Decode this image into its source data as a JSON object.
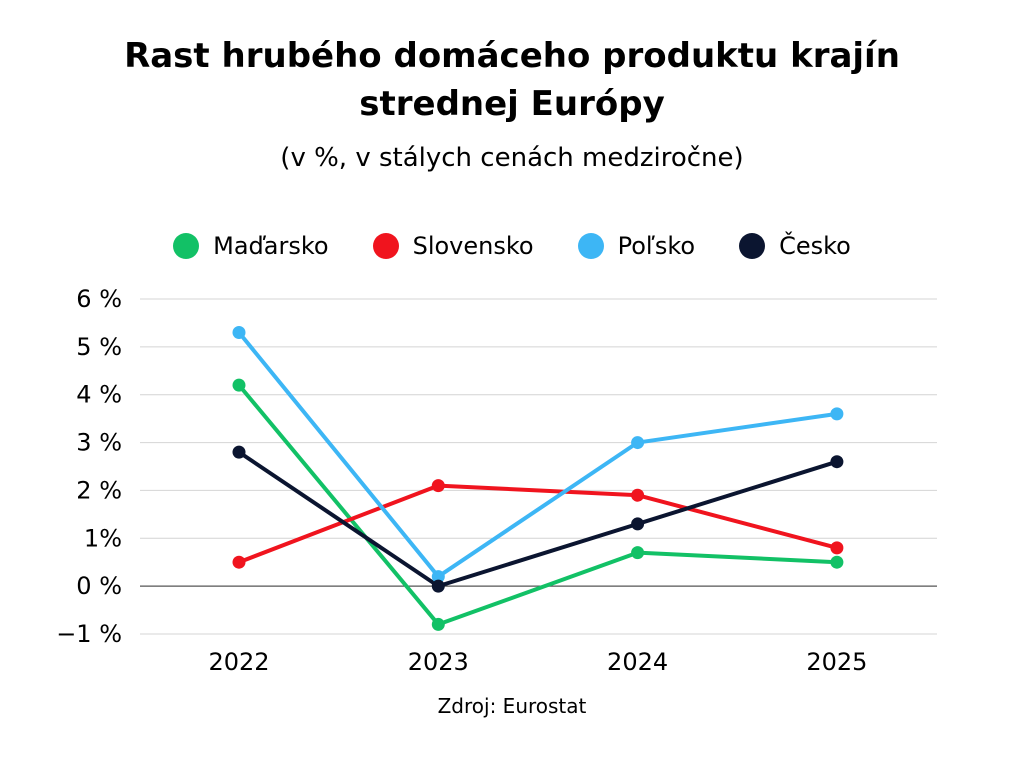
{
  "chart_data": {
    "type": "line",
    "title_lines": [
      "Rast hrubého domáceho produktu krajín",
      "strednej Európy"
    ],
    "subtitle": "(v %, v stálych cenách medziročne)",
    "categories": [
      "2022",
      "2023",
      "2024",
      "2025"
    ],
    "yticks": [
      "6 %",
      "5 %",
      "4 %",
      "3 %",
      "2 %",
      "1%",
      "0 %",
      "−1 %"
    ],
    "ytick_values": [
      6,
      5,
      4,
      3,
      2,
      1,
      0,
      -1
    ],
    "ylim": [
      -1,
      6
    ],
    "series": [
      {
        "name": "Maďarsko",
        "color": "#12c166",
        "values": [
          4.2,
          -0.8,
          0.7,
          0.5
        ]
      },
      {
        "name": "Slovensko",
        "color": "#f0141e",
        "values": [
          0.5,
          2.1,
          1.9,
          0.8
        ]
      },
      {
        "name": "Poľsko",
        "color": "#3db6f5",
        "values": [
          5.3,
          0.2,
          3.0,
          3.6
        ]
      },
      {
        "name": "Česko",
        "color": "#0b1530",
        "values": [
          2.8,
          0.0,
          1.3,
          2.6
        ]
      }
    ],
    "source": "Zdroj: Eurostat",
    "legend_position": "top-center",
    "grid": true
  }
}
